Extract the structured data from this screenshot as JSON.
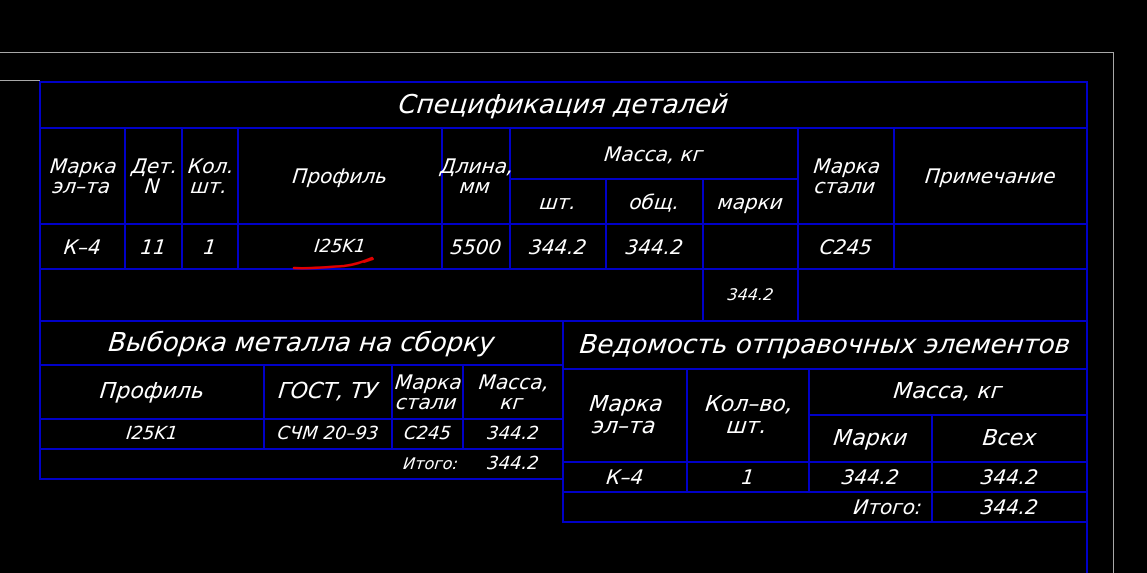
{
  "spec": {
    "title": "Спецификация деталей",
    "headers": {
      "mark": "Марка\nэл–та",
      "det": "Дет.\nN",
      "qty": "Кол.\nшт.",
      "profile": "Профиль",
      "length": "Длина,\nмм",
      "mass": "Масса, кг",
      "mass_pc": "шт.",
      "mass_total": "общ.",
      "mass_mark": "марки",
      "steel": "Марка\nстали",
      "note": "Примечание"
    },
    "row": {
      "mark": "К–4",
      "det": "11",
      "qty": "1",
      "profile": "I25K1",
      "length": "5500",
      "mass_pc": "344.2",
      "mass_total": "344.2",
      "mass_mark": "",
      "steel": "С245",
      "note": ""
    },
    "sum_mark": "344.2"
  },
  "selection": {
    "title": "Выборка металла на сборку",
    "headers": {
      "profile": "Профиль",
      "gost": "ГОСТ, ТУ",
      "steel": "Марка\nстали",
      "mass": "Масса,\nкг"
    },
    "row": {
      "profile": "I25K1",
      "gost": "СЧМ 20–93",
      "steel": "С245",
      "mass": "344.2"
    },
    "total_label": "Итого:",
    "total_value": "344.2"
  },
  "shipping": {
    "title": "Ведомость отправочных элементов",
    "headers": {
      "mark": "Марка\nэл–та",
      "qty": "Кол–во,\nшт.",
      "mass": "Масса, кг",
      "mass_mark": "Марки",
      "mass_all": "Всех"
    },
    "row": {
      "mark": "К–4",
      "qty": "1",
      "mass_mark": "344.2",
      "mass_all": "344.2"
    },
    "total_label": "Итого:",
    "total_value": "344.2"
  },
  "colors": {
    "background": "#000000",
    "grid_lines": "#0000c8",
    "frame": "#a8a8a8",
    "text": "#ffffff",
    "markup": "#e00000"
  }
}
